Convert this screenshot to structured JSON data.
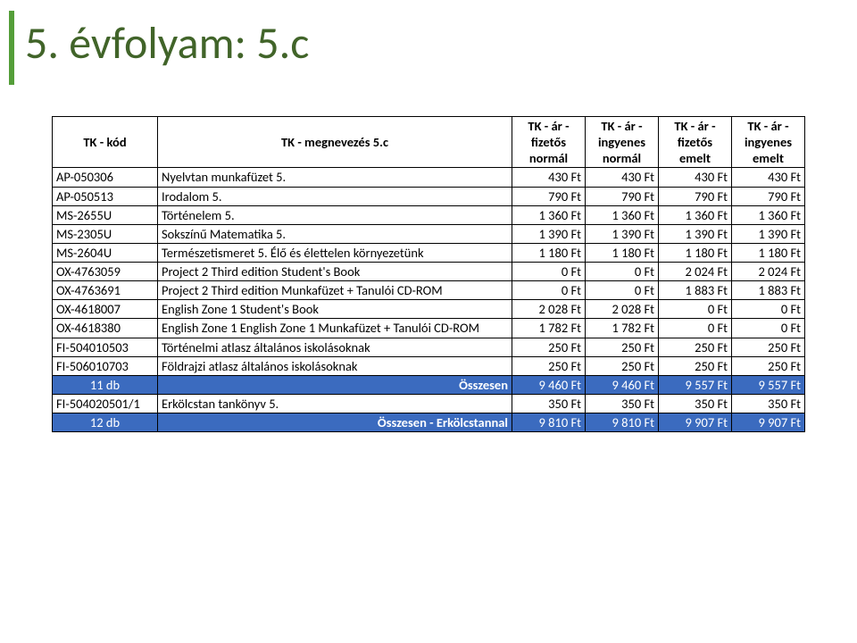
{
  "title": "5. évfolyam: 5.c",
  "columns": [
    "TK - kód",
    "TK - megnevezés 5.c",
    "TK - ár - fizetős normál",
    "TK - ár - ingyenes normál",
    "TK - ár - fizetős emelt",
    "TK - ár - ingyenes emelt"
  ],
  "rows": [
    {
      "code": "AP-050306",
      "name": "Nyelvtan munkafüzet 5.",
      "p": [
        "430 Ft",
        "430 Ft",
        "430 Ft",
        "430 Ft"
      ]
    },
    {
      "code": "AP-050513",
      "name": "Irodalom 5.",
      "p": [
        "790 Ft",
        "790 Ft",
        "790 Ft",
        "790 Ft"
      ]
    },
    {
      "code": "MS-2655U",
      "name": "Történelem 5.",
      "p": [
        "1 360 Ft",
        "1 360 Ft",
        "1 360 Ft",
        "1 360 Ft"
      ]
    },
    {
      "code": "MS-2305U",
      "name": "Sokszínű Matematika 5.",
      "p": [
        "1 390 Ft",
        "1 390 Ft",
        "1 390 Ft",
        "1 390 Ft"
      ]
    },
    {
      "code": "MS-2604U",
      "name": "Természetismeret 5. Élő és élettelen környezetünk",
      "p": [
        "1 180 Ft",
        "1 180 Ft",
        "1 180 Ft",
        "1 180 Ft"
      ]
    },
    {
      "code": "OX-4763059",
      "name": "Project 2 Third edition Student's Book",
      "p": [
        "0 Ft",
        "0 Ft",
        "2 024 Ft",
        "2 024 Ft"
      ]
    },
    {
      "code": "OX-4763691",
      "name": "Project 2 Third edition Munkafüzet + Tanulói CD-ROM",
      "p": [
        "0 Ft",
        "0 Ft",
        "1 883 Ft",
        "1 883 Ft"
      ]
    },
    {
      "code": "OX-4618007",
      "name": "English Zone 1 Student's Book",
      "p": [
        "2 028 Ft",
        "2 028 Ft",
        "0 Ft",
        "0 Ft"
      ]
    },
    {
      "code": "OX-4618380",
      "name": "English Zone 1 English Zone 1 Munkafüzet + Tanulói CD-ROM",
      "p": [
        "1 782 Ft",
        "1 782 Ft",
        "0 Ft",
        "0 Ft"
      ]
    },
    {
      "code": "FI-504010503",
      "name": "Történelmi atlasz általános iskolásoknak",
      "p": [
        "250 Ft",
        "250 Ft",
        "250 Ft",
        "250 Ft"
      ]
    },
    {
      "code": "FI-506010703",
      "name": "Földrajzi atlasz általános iskolásoknak",
      "p": [
        "250 Ft",
        "250 Ft",
        "250 Ft",
        "250 Ft"
      ]
    }
  ],
  "sum1": {
    "count": "11 db",
    "label": "Összesen",
    "p": [
      "9 460 Ft",
      "9 460 Ft",
      "9 557 Ft",
      "9 557 Ft"
    ]
  },
  "extra": {
    "code": "FI-504020501/1",
    "name": "Erkölcstan tankönyv 5.",
    "p": [
      "350 Ft",
      "350 Ft",
      "350 Ft",
      "350 Ft"
    ]
  },
  "sum2": {
    "count": "12 db",
    "label": "Összesen - Erkölcstannal",
    "p": [
      "9 810 Ft",
      "9 810 Ft",
      "9 907 Ft",
      "9 907 Ft"
    ]
  },
  "colors": {
    "accent": "#549e39",
    "title": "#416429",
    "sum_bg": "#3b6bbf",
    "sum_fg": "#ffffff",
    "border": "#000000"
  }
}
